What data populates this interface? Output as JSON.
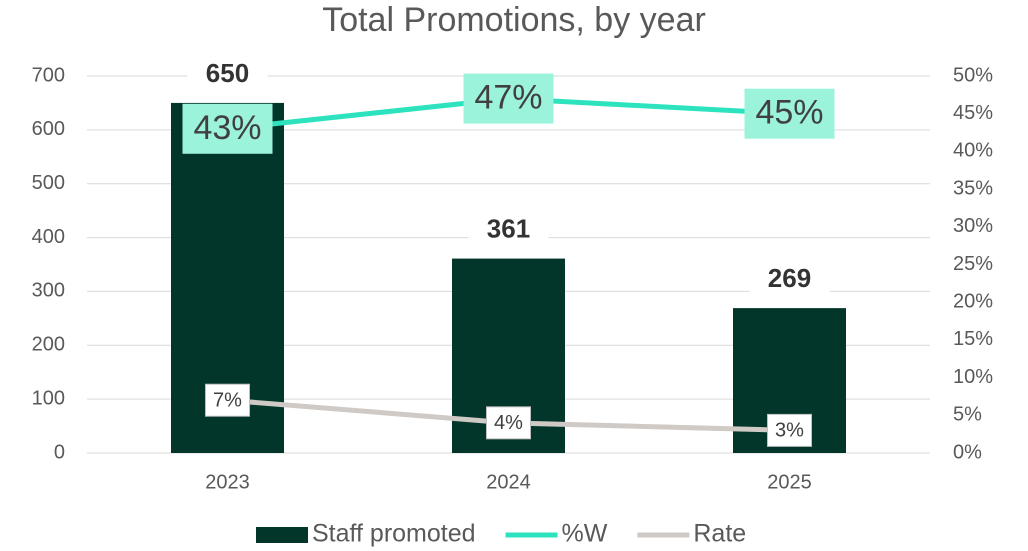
{
  "chart_data": {
    "type": "bar",
    "title": "Total Promotions, by year",
    "categories": [
      "2023",
      "2024",
      "2025"
    ],
    "series": [
      {
        "name": "Staff promoted",
        "type": "bar",
        "color": "#03362a",
        "values": [
          650,
          361,
          269
        ]
      },
      {
        "name": "%W",
        "type": "line",
        "axis": "y2",
        "color": "#2de3bd",
        "label_fill": "#9cf3dc",
        "values": [
          43,
          47,
          45
        ],
        "value_labels": [
          "43%",
          "47%",
          "45%"
        ]
      },
      {
        "name": "Rate",
        "type": "line",
        "axis": "y2",
        "color": "#cfcac6",
        "label_fill": "#ffffff",
        "values": [
          7,
          4,
          3
        ],
        "value_labels": [
          "7%",
          "4%",
          "3%"
        ]
      }
    ],
    "ylim": [
      0,
      700
    ],
    "yticks": [
      0,
      100,
      200,
      300,
      400,
      500,
      600,
      700
    ],
    "y2lim": [
      0,
      50
    ],
    "y2ticks": [
      {
        "value": 0,
        "label": "0%"
      },
      {
        "value": 5,
        "label": "5%"
      },
      {
        "value": 10,
        "label": "10%"
      },
      {
        "value": 15,
        "label": "15%"
      },
      {
        "value": 20,
        "label": "20%"
      },
      {
        "value": 25,
        "label": "25%"
      },
      {
        "value": 30,
        "label": "30%"
      },
      {
        "value": 35,
        "label": "35%"
      },
      {
        "value": 40,
        "label": "40%"
      },
      {
        "value": 45,
        "label": "45%"
      },
      {
        "value": 50,
        "label": "50%"
      }
    ],
    "grid": true,
    "legend": "bottom"
  }
}
